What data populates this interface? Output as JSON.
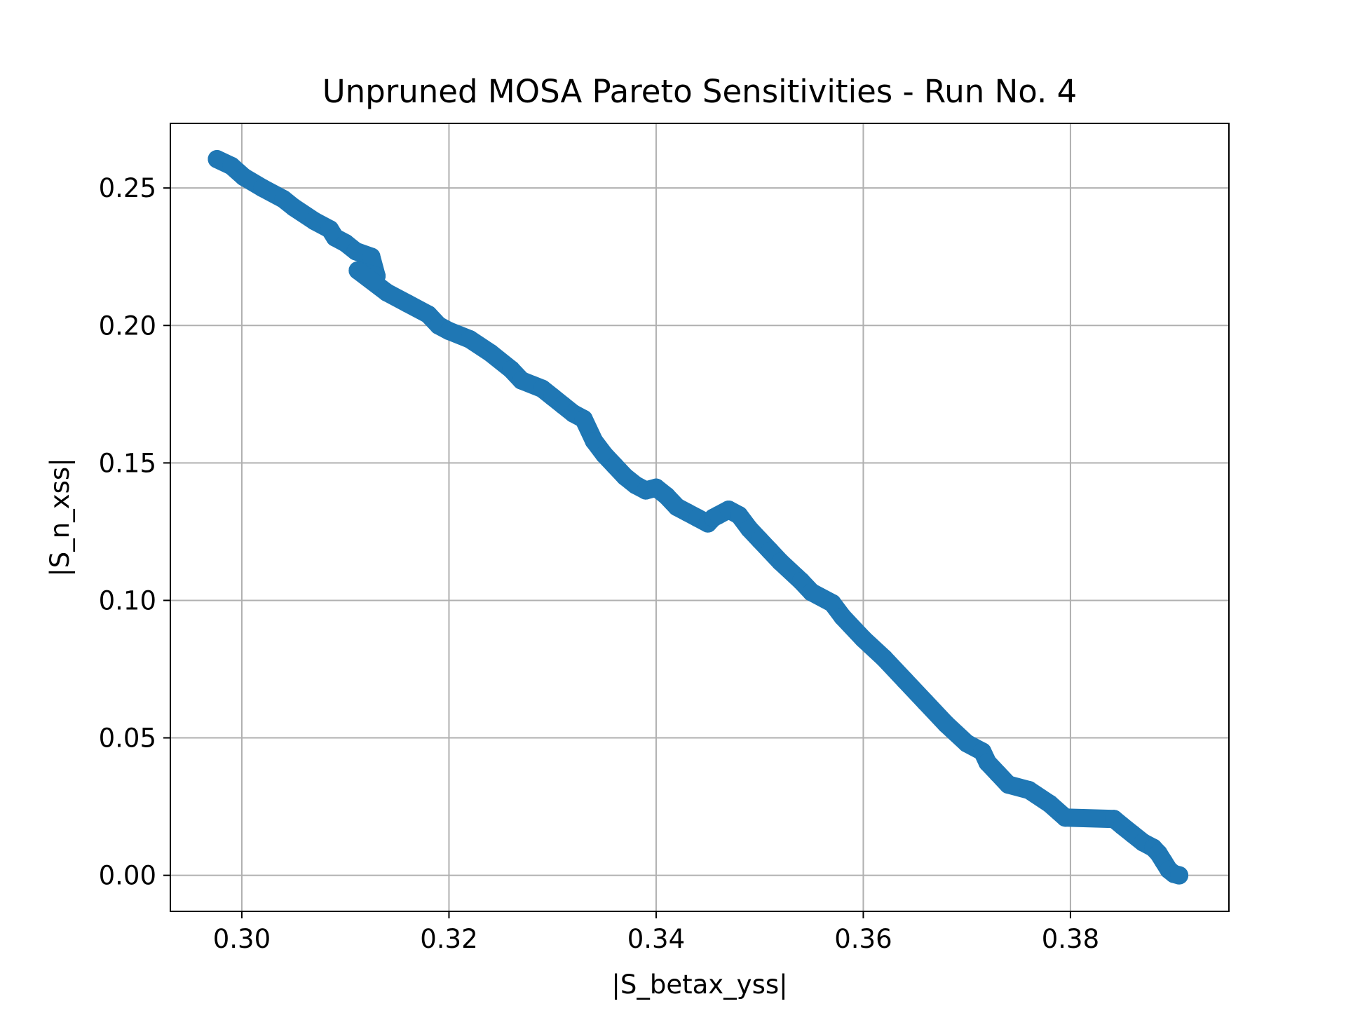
{
  "chart_data": {
    "type": "scatter",
    "title": "Unpruned MOSA Pareto Sensitivities - Run No. 4",
    "xlabel": "|S_betax_yss|",
    "ylabel": "|S_n_xss|",
    "xlim": [
      0.2931,
      0.3953
    ],
    "ylim": [
      -0.0131,
      0.2735
    ],
    "xticks": [
      0.3,
      0.32,
      0.34,
      0.36,
      0.38
    ],
    "xtick_labels": [
      "0.30",
      "0.32",
      "0.34",
      "0.36",
      "0.38"
    ],
    "yticks": [
      0.0,
      0.05,
      0.1,
      0.15,
      0.2,
      0.25
    ],
    "ytick_labels": [
      "0.00",
      "0.05",
      "0.10",
      "0.15",
      "0.20",
      "0.25"
    ],
    "grid": true,
    "legend": "none",
    "marker_color": "#1f77b4",
    "series": [
      {
        "x": [
          0.2976,
          0.299,
          0.3002,
          0.302,
          0.304,
          0.305,
          0.307,
          0.3085,
          0.309,
          0.31,
          0.311,
          0.3125,
          0.313,
          0.3112,
          0.314,
          0.316,
          0.318,
          0.319,
          0.32,
          0.322,
          0.324,
          0.326,
          0.327,
          0.329,
          0.33,
          0.331,
          0.332,
          0.333,
          0.334,
          0.335,
          0.336,
          0.337,
          0.338,
          0.339,
          0.34,
          0.341,
          0.342,
          0.343,
          0.344,
          0.345,
          0.3455,
          0.346,
          0.347,
          0.348,
          0.349,
          0.35,
          0.351,
          0.352,
          0.354,
          0.355,
          0.357,
          0.358,
          0.36,
          0.362,
          0.364,
          0.366,
          0.368,
          0.37,
          0.3715,
          0.372,
          0.373,
          0.374,
          0.376,
          0.378,
          0.3795,
          0.3842,
          0.385,
          0.386,
          0.387,
          0.388,
          0.3885,
          0.389,
          0.3895,
          0.39,
          0.3905
        ],
        "y": [
          0.2605,
          0.258,
          0.254,
          0.25,
          0.246,
          0.243,
          0.238,
          0.235,
          0.232,
          0.23,
          0.227,
          0.225,
          0.218,
          0.22,
          0.212,
          0.208,
          0.204,
          0.2,
          0.198,
          0.195,
          0.19,
          0.184,
          0.18,
          0.177,
          0.174,
          0.171,
          0.168,
          0.166,
          0.158,
          0.153,
          0.149,
          0.145,
          0.142,
          0.14,
          0.141,
          0.138,
          0.134,
          0.132,
          0.13,
          0.128,
          0.13,
          0.131,
          0.133,
          0.131,
          0.126,
          0.122,
          0.118,
          0.114,
          0.107,
          0.103,
          0.099,
          0.094,
          0.086,
          0.079,
          0.071,
          0.063,
          0.055,
          0.048,
          0.045,
          0.041,
          0.037,
          0.033,
          0.031,
          0.026,
          0.021,
          0.0205,
          0.018,
          0.015,
          0.012,
          0.01,
          0.008,
          0.005,
          0.002,
          0.0005,
          0.0
        ]
      }
    ]
  }
}
